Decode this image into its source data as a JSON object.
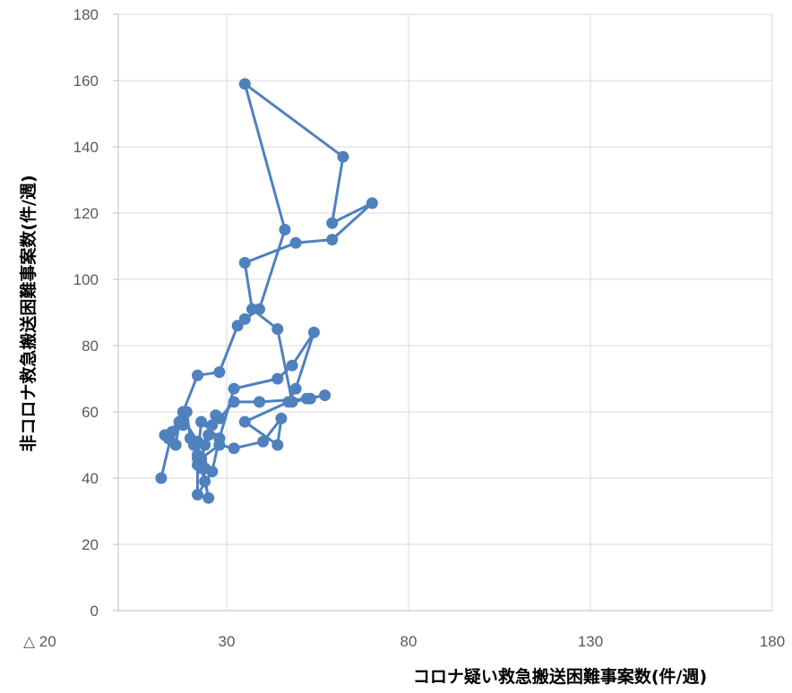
{
  "chart_data": {
    "type": "scatter",
    "xlabel": "コロナ疑い救急搬送困難事案数(件/週)",
    "ylabel": "非コロナ救急搬送困難事案数(件/週)",
    "xlim": [
      -20,
      180
    ],
    "ylim": [
      0,
      180
    ],
    "x_ticks": [
      -20,
      30,
      80,
      130,
      180
    ],
    "x_tick_labels": [
      "△ 20",
      "30",
      "80",
      "130",
      "180"
    ],
    "y_ticks": [
      0,
      20,
      40,
      60,
      80,
      100,
      120,
      140,
      160,
      180
    ],
    "y_tick_labels": [
      "0",
      "20",
      "40",
      "60",
      "80",
      "100",
      "120",
      "140",
      "160",
      "180"
    ],
    "grid": true,
    "connected": true,
    "color": "#4f81bd",
    "series": [
      {
        "x": [
          12,
          15,
          16,
          17,
          18,
          19,
          20,
          21,
          22,
          23,
          24,
          25,
          23,
          28,
          32,
          40,
          45,
          44,
          35,
          47,
          49,
          54,
          48,
          44,
          32,
          28,
          26,
          22,
          22,
          18,
          13,
          14,
          17,
          18,
          22,
          28,
          33,
          35,
          39,
          46,
          35,
          62,
          59,
          70,
          59,
          49,
          35,
          37,
          44,
          48,
          57,
          52,
          53,
          39,
          32,
          28,
          27,
          26,
          25,
          24,
          23,
          24,
          22,
          22,
          23,
          28
        ],
        "y": [
          40,
          54,
          50,
          57,
          56,
          60,
          52,
          50,
          47,
          43,
          39,
          34,
          46,
          50,
          49,
          51,
          58,
          50,
          57,
          63,
          67,
          84,
          74,
          70,
          67,
          52,
          42,
          35,
          51,
          58,
          53,
          52,
          57,
          60,
          71,
          72,
          86,
          88,
          91,
          115,
          159,
          137,
          117,
          123,
          112,
          111,
          105,
          91,
          85,
          63,
          65,
          64,
          64,
          63,
          63,
          58,
          59,
          56,
          53,
          50,
          45,
          43,
          44,
          46,
          57,
          52
        ]
      }
    ]
  }
}
